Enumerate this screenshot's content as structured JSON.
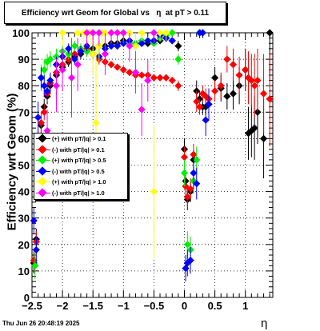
{
  "title": "Efficiency wrt Geom for Global vs   η  at pT > 0.11",
  "footer": {
    "date": "Thu Jun 26 20:48:19 2025"
  },
  "chart_data": {
    "type": "scatter",
    "title": "Efficiency wrt Geom for Global vs   η  at pT > 0.11",
    "xlabel": "η",
    "ylabel": "Efficiency wrt Geom (%)",
    "xlim": [
      -2.5,
      1.45
    ],
    "ylim": [
      0,
      100
    ],
    "xticks": [
      -2.5,
      -2,
      -1.5,
      -1,
      -0.5,
      0,
      0.5,
      1
    ],
    "xtick_labels": [
      "−2.5",
      "−2",
      "−1.5",
      "−1",
      "−0.5",
      "0",
      "0.5",
      "1"
    ],
    "yticks": [
      0,
      10,
      20,
      30,
      40,
      50,
      60,
      70,
      80,
      90,
      100
    ],
    "ytick_labels": [
      "0",
      "10",
      "20",
      "30",
      "40",
      "50",
      "60",
      "70",
      "80",
      "90",
      "100"
    ],
    "grid": true,
    "legend_position": "middle-left",
    "series": [
      {
        "name": "(+) with pT/|q| > 0.1",
        "color": "#000000",
        "x": [
          -2.47,
          -2.43,
          -2.4,
          -2.35,
          -2.3,
          -2.25,
          -2.2,
          -2.1,
          -2.0,
          -1.9,
          -1.8,
          -1.7,
          -1.6,
          -1.5,
          -1.4,
          -1.3,
          -1.2,
          -1.1,
          -1.0,
          -0.9,
          -0.8,
          -0.7,
          -0.6,
          -0.5,
          -0.4,
          -0.3,
          -0.2,
          -0.1,
          0.0,
          0.02,
          0.05,
          0.1,
          0.15,
          0.2,
          0.25,
          0.3,
          0.35,
          0.4,
          0.5,
          0.6,
          0.7,
          0.8,
          0.9,
          1.0,
          1.05,
          1.1,
          1.15,
          1.2,
          1.3,
          1.4
        ],
        "y": [
          13,
          22,
          57,
          65,
          72,
          76,
          80,
          84,
          87,
          89,
          91,
          92,
          93,
          94,
          95,
          95,
          96,
          96,
          97,
          96,
          96,
          96,
          96,
          97,
          97,
          98,
          97,
          95,
          56,
          44,
          37,
          40,
          52,
          78,
          75,
          72,
          72,
          73,
          83,
          79,
          76,
          77,
          80,
          86,
          62,
          63,
          64,
          70,
          60,
          100
        ],
        "yerr": [
          4,
          4,
          5,
          4,
          3,
          3,
          3,
          2,
          2,
          2,
          2,
          2,
          2,
          2,
          2,
          2,
          1,
          1,
          1,
          1,
          1,
          1,
          1,
          1,
          1,
          1,
          1,
          2,
          4,
          4,
          4,
          4,
          4,
          4,
          3,
          3,
          3,
          3,
          4,
          5,
          5,
          6,
          7,
          8,
          10,
          10,
          12,
          12,
          15,
          18
        ]
      },
      {
        "name": "(-) with pT/|q| > 0.1",
        "color": "#ff0000",
        "x": [
          -2.47,
          -2.43,
          -2.4,
          -2.35,
          -2.3,
          -2.25,
          -2.2,
          -2.1,
          -2.0,
          -1.9,
          -1.8,
          -1.7,
          -1.6,
          -1.5,
          -1.4,
          -1.3,
          -1.2,
          -1.1,
          -1.0,
          -0.9,
          -0.8,
          -0.7,
          -0.6,
          -0.5,
          -0.4,
          -0.3,
          -0.2,
          -0.1,
          0.0,
          0.02,
          0.05,
          0.1,
          0.15,
          0.2,
          0.25,
          0.3,
          0.35,
          0.4,
          0.5,
          0.6,
          0.7,
          0.8,
          0.9,
          1.0,
          1.05,
          1.1,
          1.15,
          1.2,
          1.3,
          1.4
        ],
        "y": [
          14,
          21,
          58,
          66,
          70,
          77,
          81,
          85,
          88,
          90,
          92,
          93,
          94,
          92,
          90,
          89,
          88,
          87,
          86,
          85,
          84,
          84,
          84,
          83,
          83,
          83,
          82,
          80,
          53,
          42,
          38,
          41,
          54,
          74,
          72,
          77,
          76,
          75,
          78,
          80,
          90,
          88,
          84,
          86,
          83,
          82,
          80,
          82,
          77,
          75
        ],
        "yerr": [
          4,
          4,
          5,
          4,
          3,
          3,
          3,
          2,
          2,
          2,
          2,
          2,
          2,
          2,
          2,
          2,
          1,
          1,
          1,
          1,
          1,
          1,
          1,
          1,
          1,
          1,
          1,
          2,
          4,
          4,
          4,
          4,
          4,
          4,
          3,
          3,
          3,
          3,
          4,
          5,
          5,
          6,
          7,
          8,
          10,
          10,
          12,
          12,
          15,
          18
        ]
      },
      {
        "name": "(+) with pT/|q| > 0.5",
        "color": "#00ee00",
        "x": [
          -2.45,
          -2.35,
          -2.3,
          -2.25,
          -2.2,
          -2.1,
          -2.0,
          -1.9,
          -1.8,
          -1.7,
          -1.6,
          -1.5,
          -1.4,
          -1.3,
          -1.2,
          -1.1,
          -1.0,
          -0.9,
          -0.8,
          -0.7,
          -0.6,
          -0.5,
          -0.4,
          -0.3,
          -0.2,
          -0.1,
          0.0,
          0.05,
          0.1,
          0.15,
          0.2,
          0.25,
          0.3
        ],
        "y": [
          12,
          83,
          86,
          89,
          90,
          91,
          93,
          92,
          95,
          94,
          93,
          92,
          91,
          94,
          95,
          95,
          96,
          96,
          96,
          97,
          97,
          96,
          98,
          99,
          100,
          90,
          47,
          20,
          18,
          44,
          52,
          100,
          100
        ],
        "yerr": [
          5,
          5,
          4,
          3,
          3,
          3,
          2,
          2,
          2,
          2,
          2,
          2,
          2,
          2,
          1,
          1,
          1,
          1,
          1,
          1,
          1,
          1,
          1,
          1,
          1,
          2,
          5,
          5,
          5,
          5,
          5,
          2,
          2
        ]
      },
      {
        "name": "(-) with pT/|q| > 0.5",
        "color": "#0000ff",
        "x": [
          -2.47,
          -2.43,
          -2.4,
          -2.35,
          -2.3,
          -2.25,
          -2.2,
          -2.1,
          -2.0,
          -1.9,
          -1.8,
          -1.7,
          -1.6,
          -1.5,
          -1.4,
          -1.3,
          -1.2,
          -1.1,
          -1.0,
          -0.9,
          -0.8,
          -0.7,
          -0.6,
          -0.5,
          -0.4,
          -0.3,
          -0.2,
          0.02,
          0.05,
          0.1,
          0.15,
          0.2,
          0.25,
          0.3,
          0.35,
          0.4
        ],
        "y": [
          29,
          18,
          68,
          83,
          80,
          78,
          82,
          88,
          91,
          94,
          90,
          93,
          95,
          92,
          91,
          94,
          95,
          95,
          96,
          97,
          95,
          96,
          97,
          97,
          99,
          98,
          97,
          11,
          13,
          14,
          47,
          43,
          100,
          100,
          67,
          73
        ],
        "yerr": [
          5,
          5,
          6,
          4,
          4,
          3,
          3,
          3,
          2,
          2,
          2,
          2,
          2,
          2,
          2,
          2,
          1,
          1,
          1,
          1,
          1,
          1,
          1,
          1,
          1,
          1,
          1,
          5,
          5,
          5,
          6,
          6,
          2,
          2,
          6,
          6
        ]
      },
      {
        "name": "(+) with pT/|q| > 1.0",
        "color": "#ffff00",
        "x": [
          -2.0,
          -1.75,
          -1.65,
          -1.55,
          -1.5,
          -1.45,
          -1.4,
          -1.35,
          -1.3,
          -1.2,
          -1.1,
          -1.0,
          -0.9,
          -0.8,
          -0.7,
          -0.5,
          -0.4,
          -0.3
        ],
        "y": [
          100,
          100,
          100,
          100,
          92,
          66,
          95,
          100,
          100,
          100,
          100,
          100,
          100,
          95,
          100,
          40,
          100,
          100
        ],
        "yerr": [
          5,
          5,
          5,
          5,
          8,
          30,
          6,
          5,
          5,
          4,
          4,
          3,
          3,
          6,
          3,
          25,
          3,
          3
        ]
      },
      {
        "name": "(-) with pT/|q| > 1.0",
        "color": "#ff00ff",
        "x": [
          -2.25,
          -2.1,
          -2.0,
          -1.85,
          -1.75,
          -1.6,
          -1.5,
          -1.4,
          -1.3,
          -1.2,
          -1.1,
          -1.0,
          -0.9,
          -0.8,
          -0.7,
          -0.6,
          -0.5
        ],
        "y": [
          63,
          80,
          86,
          83,
          88,
          100,
          100,
          100,
          92,
          100,
          100,
          100,
          95,
          85,
          71,
          82,
          100
        ],
        "yerr": [
          8,
          10,
          8,
          15,
          10,
          5,
          5,
          5,
          8,
          4,
          4,
          4,
          6,
          8,
          10,
          8,
          4
        ]
      }
    ]
  }
}
